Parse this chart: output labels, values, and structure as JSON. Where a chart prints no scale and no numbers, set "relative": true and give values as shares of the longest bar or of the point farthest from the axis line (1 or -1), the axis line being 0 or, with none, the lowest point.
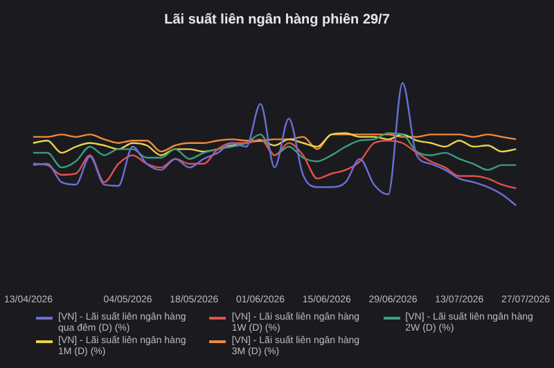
{
  "chart_data": {
    "type": "line",
    "title": "Lãi suất liên ngân hàng phiên 29/7",
    "relative": true,
    "legend": "bottom",
    "marker": "none",
    "grid": false,
    "x": [
      "2026-04-14",
      "2026-04-17",
      "2026-04-20",
      "2026-04-23",
      "2026-04-26",
      "2026-04-29",
      "2026-05-02",
      "2026-05-05",
      "2026-05-08",
      "2026-05-11",
      "2026-05-14",
      "2026-05-17",
      "2026-05-20",
      "2026-05-23",
      "2026-05-26",
      "2026-05-29",
      "2026-06-01",
      "2026-06-04",
      "2026-06-07",
      "2026-06-10",
      "2026-06-13",
      "2026-06-16",
      "2026-06-19",
      "2026-06-22",
      "2026-06-25",
      "2026-06-28",
      "2026-07-01",
      "2026-07-04",
      "2026-07-07",
      "2026-07-10",
      "2026-07-13",
      "2026-07-16",
      "2026-07-19",
      "2026-07-22",
      "2026-07-25"
    ],
    "xlim": [
      "2026-04-13",
      "2026-07-27"
    ],
    "xticks": [
      {
        "value": "2026-04-13",
        "label": "13/04/2026"
      },
      {
        "value": "2026-05-04",
        "label": "04/05/2026"
      },
      {
        "value": "2026-05-18",
        "label": "18/05/2026"
      },
      {
        "value": "2026-06-01",
        "label": "01/06/2026"
      },
      {
        "value": "2026-06-15",
        "label": "15/06/2026"
      },
      {
        "value": "2026-06-29",
        "label": "29/06/2026"
      },
      {
        "value": "2026-07-13",
        "label": "13/07/2026"
      },
      {
        "value": "2026-07-27",
        "label": "27/07/2026"
      }
    ],
    "series": [
      {
        "name": "[VN] - Lãi suất liên ngân hàng qua đêm (D) (%)",
        "color": "#6b6fd6",
        "values": [
          0.33,
          0.34,
          0.19,
          0.17,
          0.4,
          0.17,
          0.16,
          0.48,
          0.34,
          0.29,
          0.38,
          0.31,
          0.38,
          0.43,
          0.51,
          0.48,
          0.83,
          0.31,
          0.71,
          0.25,
          0.15,
          0.15,
          0.19,
          0.38,
          0.17,
          0.09,
          1,
          0.41,
          0.34,
          0.29,
          0.22,
          0.19,
          0.15,
          0.09,
          0
        ]
      },
      {
        "name": "[VN] - Lãi suất liên ngân hàng 1W (D) (%)",
        "color": "#e0524a",
        "values": [
          0.34,
          0.33,
          0.25,
          0.26,
          0.41,
          0.19,
          0.34,
          0.41,
          0.34,
          0.31,
          0.38,
          0.34,
          0.34,
          0.46,
          0.51,
          0.51,
          0.54,
          0.41,
          0.51,
          0.41,
          0.22,
          0.26,
          0.29,
          0.36,
          0.51,
          0.53,
          0.51,
          0.43,
          0.36,
          0.31,
          0.24,
          0.24,
          0.22,
          0.17,
          0.14
        ]
      },
      {
        "name": "[VN] - Lãi suất liên ngân hàng 2W (D) (%)",
        "color": "#3a9e7e",
        "values": [
          0.43,
          0.43,
          0.31,
          0.36,
          0.48,
          0.41,
          0.46,
          0.46,
          0.39,
          0.39,
          0.46,
          0.38,
          0.43,
          0.46,
          0.48,
          0.51,
          0.58,
          0.41,
          0.48,
          0.39,
          0.36,
          0.41,
          0.48,
          0.53,
          0.54,
          0.59,
          0.58,
          0.44,
          0.41,
          0.43,
          0.38,
          0.34,
          0.29,
          0.33,
          0.33
        ]
      },
      {
        "name": "[VN] - Lãi suất liên ngân hàng 1M (D) (%)",
        "color": "#e8d44d",
        "values": [
          0.51,
          0.53,
          0.43,
          0.48,
          0.51,
          0.49,
          0.46,
          0.51,
          0.49,
          0.41,
          0.46,
          0.46,
          0.44,
          0.46,
          0.49,
          0.51,
          0.53,
          0.49,
          0.54,
          0.51,
          0.48,
          0.58,
          0.59,
          0.56,
          0.56,
          0.54,
          0.58,
          0.53,
          0.51,
          0.48,
          0.53,
          0.48,
          0.49,
          0.44,
          0.46
        ]
      },
      {
        "name": "[VN] - Lãi suất liên ngân hàng 3M (D) (%)",
        "color": "#f08a3c",
        "values": [
          0.56,
          0.56,
          0.58,
          0.56,
          0.58,
          0.54,
          0.51,
          0.53,
          0.53,
          0.44,
          0.49,
          0.51,
          0.51,
          0.53,
          0.54,
          0.53,
          0.53,
          0.54,
          0.54,
          0.56,
          0.46,
          0.58,
          0.58,
          0.58,
          0.58,
          0.58,
          0.56,
          0.56,
          0.58,
          0.58,
          0.58,
          0.56,
          0.58,
          0.56,
          0.54
        ]
      }
    ]
  }
}
